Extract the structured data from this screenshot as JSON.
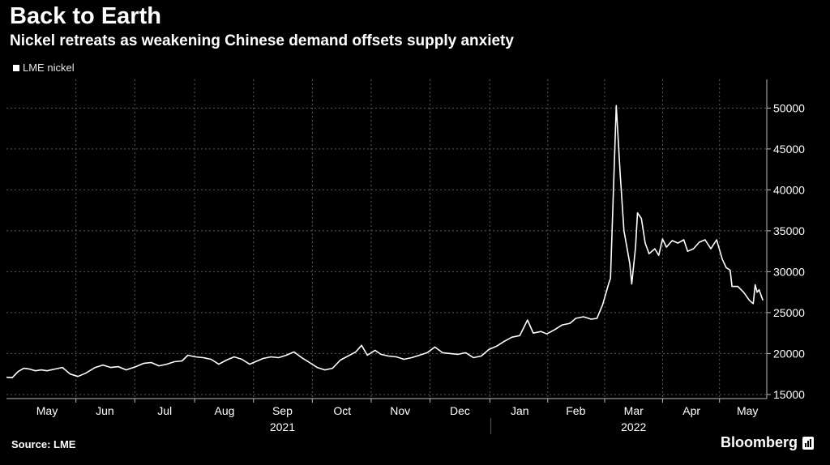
{
  "header": {
    "title": "Back to Earth",
    "subtitle": "Nickel retreats as weakening Chinese demand offsets supply anxiety"
  },
  "footer": {
    "source": "Source: LME",
    "brand": "Bloomberg"
  },
  "colors": {
    "background": "#000000",
    "line": "#ffffff",
    "grid": "#5a5a5a",
    "text": "#ffffff"
  },
  "chart_data": {
    "type": "line",
    "title": "Back to Earth",
    "subtitle": "Nickel retreats as weakening Chinese demand offsets supply anxiety",
    "legend": [
      "LME nickel"
    ],
    "legend_position": "top-left",
    "y_axis_position": "right",
    "grid": true,
    "ylim": [
      14500,
      53500
    ],
    "yticks": [
      15000,
      20000,
      25000,
      30000,
      35000,
      40000,
      45000,
      50000
    ],
    "xlim": [
      "2021-04-25",
      "2022-05-24"
    ],
    "month_labels": [
      {
        "label": "May",
        "date": "2021-05-16"
      },
      {
        "label": "Jun",
        "date": "2021-06-15"
      },
      {
        "label": "Jul",
        "date": "2021-07-16"
      },
      {
        "label": "Aug",
        "date": "2021-08-16"
      },
      {
        "label": "Sep",
        "date": "2021-09-15"
      },
      {
        "label": "Oct",
        "date": "2021-10-16"
      },
      {
        "label": "Nov",
        "date": "2021-11-15"
      },
      {
        "label": "Dec",
        "date": "2021-12-16"
      },
      {
        "label": "Jan",
        "date": "2022-01-16"
      },
      {
        "label": "Feb",
        "date": "2022-02-14"
      },
      {
        "label": "Mar",
        "date": "2022-03-16"
      },
      {
        "label": "Apr",
        "date": "2022-04-15"
      },
      {
        "label": "May",
        "date": "2022-05-14"
      }
    ],
    "year_labels": [
      {
        "label": "2021",
        "date": "2021-09-15"
      },
      {
        "label": "2022",
        "date": "2022-03-16"
      }
    ],
    "year_divider": "2022-01-01",
    "series": [
      {
        "name": "LME nickel",
        "points": [
          [
            "2021-04-25",
            17100
          ],
          [
            "2021-04-28",
            17050
          ],
          [
            "2021-05-01",
            17800
          ],
          [
            "2021-05-04",
            18200
          ],
          [
            "2021-05-07",
            18100
          ],
          [
            "2021-05-10",
            17900
          ],
          [
            "2021-05-13",
            18000
          ],
          [
            "2021-05-16",
            17900
          ],
          [
            "2021-05-20",
            18100
          ],
          [
            "2021-05-24",
            18300
          ],
          [
            "2021-05-28",
            17500
          ],
          [
            "2021-06-01",
            17200
          ],
          [
            "2021-06-05",
            17600
          ],
          [
            "2021-06-10",
            18300
          ],
          [
            "2021-06-14",
            18600
          ],
          [
            "2021-06-18",
            18300
          ],
          [
            "2021-06-22",
            18400
          ],
          [
            "2021-06-26",
            18000
          ],
          [
            "2021-07-01",
            18400
          ],
          [
            "2021-07-05",
            18800
          ],
          [
            "2021-07-09",
            18900
          ],
          [
            "2021-07-13",
            18500
          ],
          [
            "2021-07-17",
            18700
          ],
          [
            "2021-07-21",
            19000
          ],
          [
            "2021-07-25",
            19100
          ],
          [
            "2021-07-28",
            19800
          ],
          [
            "2021-08-01",
            19600
          ],
          [
            "2021-08-05",
            19500
          ],
          [
            "2021-08-09",
            19300
          ],
          [
            "2021-08-13",
            18700
          ],
          [
            "2021-08-17",
            19200
          ],
          [
            "2021-08-21",
            19600
          ],
          [
            "2021-08-25",
            19300
          ],
          [
            "2021-08-29",
            18700
          ],
          [
            "2021-09-01",
            19000
          ],
          [
            "2021-09-05",
            19400
          ],
          [
            "2021-09-09",
            19600
          ],
          [
            "2021-09-13",
            19500
          ],
          [
            "2021-09-17",
            19800
          ],
          [
            "2021-09-21",
            20200
          ],
          [
            "2021-09-25",
            19500
          ],
          [
            "2021-09-29",
            18900
          ],
          [
            "2021-10-03",
            18300
          ],
          [
            "2021-10-07",
            18000
          ],
          [
            "2021-10-11",
            18200
          ],
          [
            "2021-10-15",
            19200
          ],
          [
            "2021-10-19",
            19700
          ],
          [
            "2021-10-23",
            20200
          ],
          [
            "2021-10-26",
            21000
          ],
          [
            "2021-10-29",
            19800
          ],
          [
            "2021-11-02",
            20400
          ],
          [
            "2021-11-05",
            19900
          ],
          [
            "2021-11-09",
            19700
          ],
          [
            "2021-11-13",
            19600
          ],
          [
            "2021-11-17",
            19300
          ],
          [
            "2021-11-21",
            19500
          ],
          [
            "2021-11-25",
            19800
          ],
          [
            "2021-11-29",
            20100
          ],
          [
            "2021-12-03",
            20800
          ],
          [
            "2021-12-07",
            20100
          ],
          [
            "2021-12-11",
            20000
          ],
          [
            "2021-12-15",
            19900
          ],
          [
            "2021-12-19",
            20100
          ],
          [
            "2021-12-23",
            19500
          ],
          [
            "2021-12-27",
            19700
          ],
          [
            "2021-12-31",
            20500
          ],
          [
            "2022-01-04",
            20900
          ],
          [
            "2022-01-08",
            21500
          ],
          [
            "2022-01-12",
            22000
          ],
          [
            "2022-01-16",
            22200
          ],
          [
            "2022-01-20",
            24100
          ],
          [
            "2022-01-23",
            22500
          ],
          [
            "2022-01-27",
            22700
          ],
          [
            "2022-01-30",
            22400
          ],
          [
            "2022-02-03",
            22900
          ],
          [
            "2022-02-07",
            23500
          ],
          [
            "2022-02-11",
            23700
          ],
          [
            "2022-02-14",
            24300
          ],
          [
            "2022-02-18",
            24500
          ],
          [
            "2022-02-22",
            24200
          ],
          [
            "2022-02-25",
            24300
          ],
          [
            "2022-02-28",
            26000
          ],
          [
            "2022-03-03",
            28500
          ],
          [
            "2022-03-04",
            29200
          ],
          [
            "2022-03-07",
            50300
          ],
          [
            "2022-03-09",
            42000
          ],
          [
            "2022-03-11",
            35000
          ],
          [
            "2022-03-14",
            31000
          ],
          [
            "2022-03-15",
            28500
          ],
          [
            "2022-03-17",
            33000
          ],
          [
            "2022-03-18",
            37200
          ],
          [
            "2022-03-20",
            36500
          ],
          [
            "2022-03-22",
            33500
          ],
          [
            "2022-03-24",
            32200
          ],
          [
            "2022-03-27",
            32800
          ],
          [
            "2022-03-29",
            32000
          ],
          [
            "2022-03-31",
            34000
          ],
          [
            "2022-04-02",
            33000
          ],
          [
            "2022-04-05",
            33800
          ],
          [
            "2022-04-08",
            33500
          ],
          [
            "2022-04-11",
            33900
          ],
          [
            "2022-04-13",
            32500
          ],
          [
            "2022-04-16",
            32800
          ],
          [
            "2022-04-19",
            33600
          ],
          [
            "2022-04-22",
            33900
          ],
          [
            "2022-04-25",
            32800
          ],
          [
            "2022-04-28",
            33900
          ],
          [
            "2022-05-01",
            31500
          ],
          [
            "2022-05-03",
            30500
          ],
          [
            "2022-05-05",
            30200
          ],
          [
            "2022-05-06",
            28200
          ],
          [
            "2022-05-09",
            28200
          ],
          [
            "2022-05-12",
            27500
          ],
          [
            "2022-05-15",
            26500
          ],
          [
            "2022-05-17",
            26100
          ],
          [
            "2022-05-18",
            28400
          ],
          [
            "2022-05-19",
            27500
          ],
          [
            "2022-05-20",
            27800
          ],
          [
            "2022-05-22",
            26500
          ]
        ]
      }
    ]
  }
}
